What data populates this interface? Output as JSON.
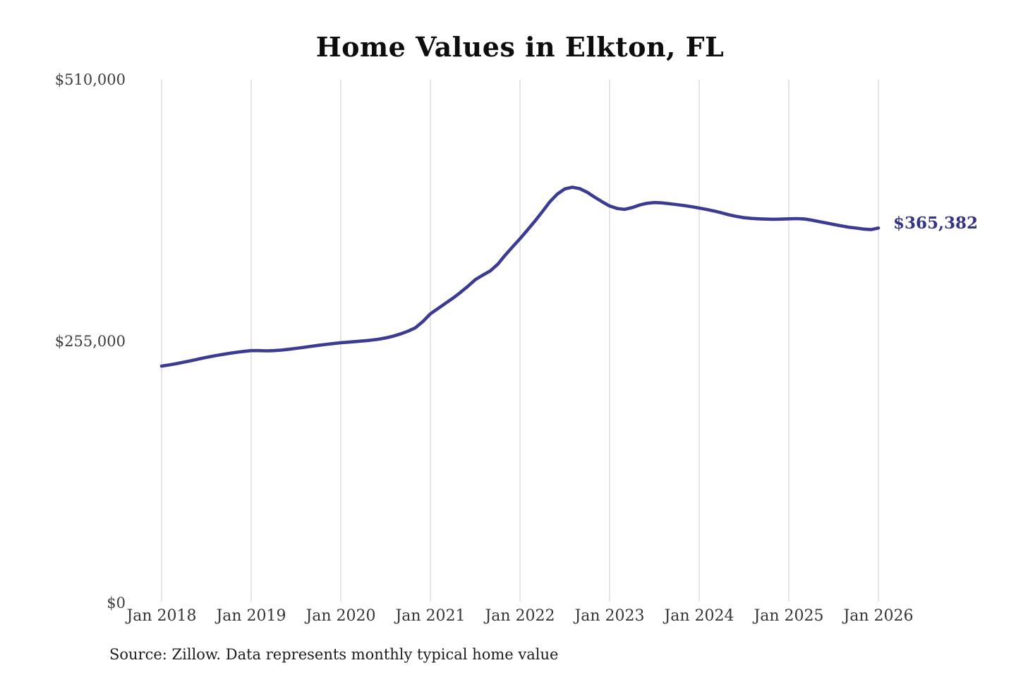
{
  "page_title": "Home Values in Elkton, FL",
  "footnote": "Source: Zillow. Data represents monthly typical home value",
  "chart_data": {
    "type": "line",
    "title": "Home Values in Elkton, FL",
    "xlabel": "",
    "ylabel": "",
    "frequency": "monthly",
    "x_start": "Jan 2018",
    "x_end": "Jan 2026",
    "x_tick_labels": [
      "Jan 2018",
      "Jan 2019",
      "Jan 2020",
      "Jan 2021",
      "Jan 2022",
      "Jan 2023",
      "Jan 2024",
      "Jan 2025",
      "Jan 2026"
    ],
    "y_ticks": [
      {
        "label": "$510,000",
        "value": 510000
      },
      {
        "label": "$255,000",
        "value": 255000
      },
      {
        "label": "$0",
        "value": 0
      }
    ],
    "ylim": [
      0,
      510000
    ],
    "grid": "vertical-only",
    "legend": "none",
    "end_label": "$365,382",
    "end_value": 365382,
    "line_color": "#3b3b94",
    "end_label_color": "#333387",
    "gridline_color": "#cbcbcb",
    "series": [
      {
        "name": "Typical home value",
        "values": [
          230900,
          232000,
          233300,
          234700,
          236200,
          237800,
          239300,
          240700,
          242000,
          243200,
          244300,
          245200,
          245900,
          245900,
          245700,
          245900,
          246400,
          247200,
          248100,
          249100,
          250100,
          251100,
          252000,
          252800,
          253600,
          254200,
          254800,
          255400,
          256100,
          257000,
          258300,
          260000,
          262200,
          264900,
          268200,
          274300,
          281800,
          286900,
          292000,
          297000,
          302500,
          308500,
          315000,
          319500,
          323500,
          330000,
          338800,
          347000,
          355000,
          363500,
          372200,
          381500,
          391000,
          398500,
          403500,
          405200,
          403800,
          400200,
          395500,
          391000,
          386900,
          384500,
          383600,
          385300,
          387800,
          389500,
          390300,
          389900,
          389100,
          388300,
          387300,
          386200,
          384900,
          383500,
          382000,
          380200,
          378300,
          376700,
          375500,
          374800,
          374400,
          374100,
          374000,
          374100,
          374400,
          374600,
          374300,
          373200,
          371800,
          370400,
          368900,
          367500,
          366300,
          365400,
          364400,
          363900,
          365382
        ]
      }
    ]
  }
}
